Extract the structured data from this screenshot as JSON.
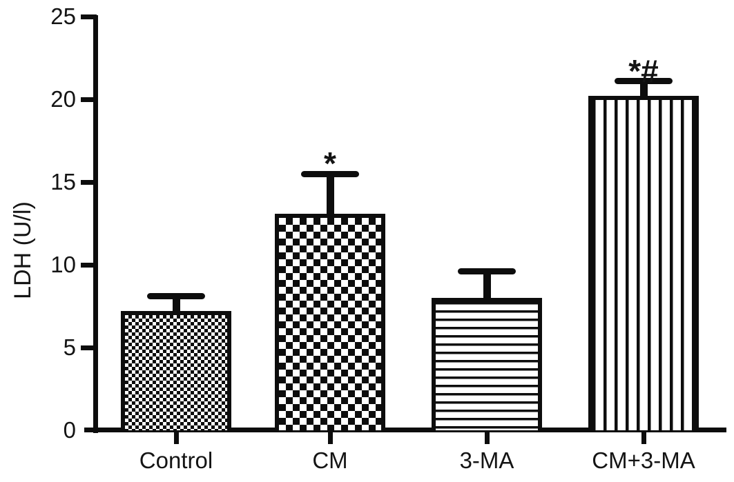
{
  "figure": {
    "background_color": "#ffffff",
    "ink_color": "#0d0d0d"
  },
  "chart_data": {
    "type": "bar",
    "title": "",
    "xlabel": "",
    "ylabel": "LDH (U/l)",
    "ylim": [
      0,
      25
    ],
    "yticks": [
      0,
      5,
      10,
      15,
      20,
      25
    ],
    "grid": false,
    "legend": "none",
    "categories": [
      "Control",
      "CM",
      "3-MA",
      "CM+3-MA"
    ],
    "values": [
      7.2,
      13.1,
      8.0,
      20.2
    ],
    "error_upper": [
      0.9,
      2.4,
      1.6,
      0.9
    ],
    "error_top_values": [
      8.1,
      15.5,
      9.6,
      21.1
    ],
    "significance_annotations": [
      "",
      "*",
      "",
      "*#"
    ],
    "bar_patterns": [
      "fine-checkerboard",
      "coarse-checkerboard",
      "horizontal-stripes",
      "vertical-stripes"
    ],
    "bar_fill_color": "#ffffff",
    "bar_stroke_color": "#0d0d0d"
  }
}
